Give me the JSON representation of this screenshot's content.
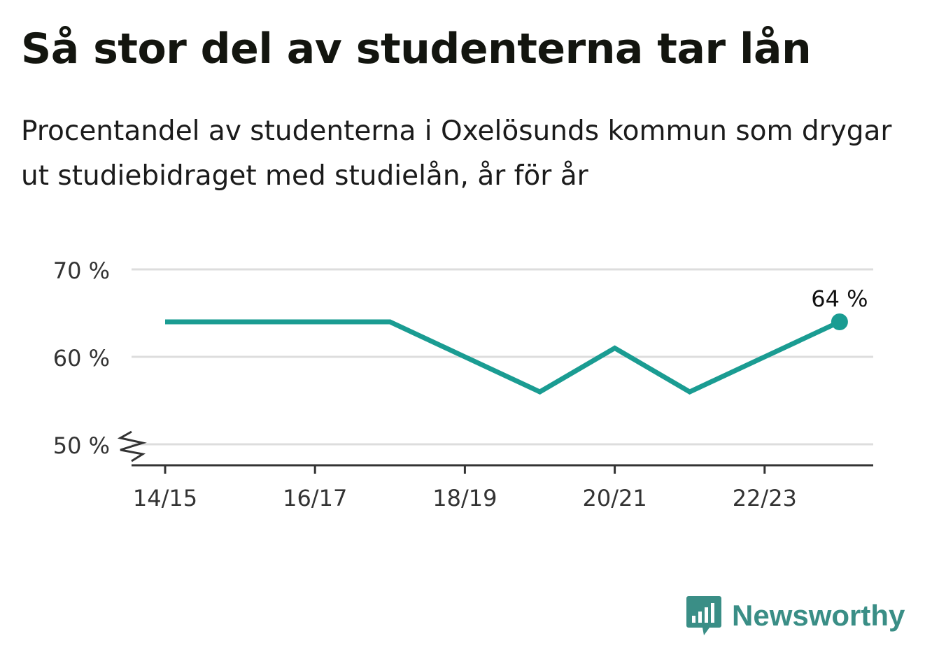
{
  "title": "Så stor del av studenterna tar lån",
  "subtitle": "Procentandel av studenterna i Oxelösunds kommun som drygar ut studiebidraget med studielån, år för år",
  "brand": {
    "name": "Newsworthy",
    "icon": "newsworthy-logo-icon",
    "color": "#3a8e86"
  },
  "colors": {
    "series": "#1a9c92",
    "grid": "#dddddd",
    "axis": "#333333",
    "text": "#333333"
  },
  "chart_data": {
    "type": "line",
    "title": "Så stor del av studenterna tar lån",
    "subtitle": "Procentandel av studenterna i Oxelösunds kommun som drygar ut studiebidraget med studielån, år för år",
    "xlabel": "",
    "ylabel": "",
    "x": [
      "14/15",
      "15/16",
      "16/17",
      "17/18",
      "18/19",
      "19/20",
      "20/21",
      "21/22",
      "22/23",
      "23/24"
    ],
    "x_tick_labels": [
      "14/15",
      "16/17",
      "18/19",
      "20/21",
      "22/23"
    ],
    "y_ticks": [
      50,
      60,
      70
    ],
    "y_tick_labels": [
      "50 %",
      "60 %",
      "70 %"
    ],
    "ylim": [
      50,
      70
    ],
    "y_axis_break": true,
    "grid": true,
    "legend": "none",
    "series": [
      {
        "values": [
          64,
          64,
          64,
          64,
          60,
          56,
          61,
          56,
          60,
          64
        ]
      }
    ],
    "end_label": "64 %"
  }
}
